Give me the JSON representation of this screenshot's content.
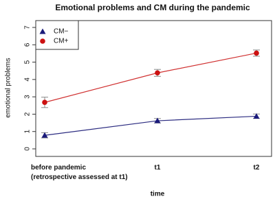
{
  "chart_data": {
    "type": "line",
    "title": "Emotional problems and CM during the pandemic",
    "x_label": "time",
    "y_label": "emotional problems",
    "categories": [
      "before pandemic\n(retrospective assessed at t1)",
      "t1",
      "t2"
    ],
    "series": [
      {
        "name": "CM−",
        "color": "#1a1a7a",
        "line_color": "#2b2b80",
        "marker": "triangle",
        "values": [
          0.78,
          1.62,
          1.88
        ],
        "errors": [
          0.15,
          0.13,
          0.13
        ]
      },
      {
        "name": "CM+",
        "color": "#cc1111",
        "line_color": "#d03030",
        "marker": "circle",
        "values": [
          2.68,
          4.38,
          5.52
        ],
        "errors": [
          0.3,
          0.2,
          0.18
        ]
      }
    ],
    "ylim": [
      0,
      7
    ],
    "yticks": [
      0,
      1,
      2,
      3,
      4,
      5,
      6,
      7
    ],
    "legend": "top-left"
  }
}
